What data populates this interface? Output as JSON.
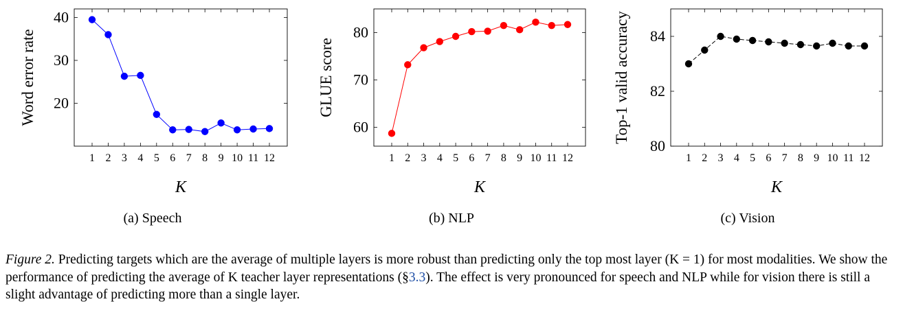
{
  "chart_data": [
    {
      "type": "line",
      "subcaption": "(a) Speech",
      "xlabel": "K",
      "ylabel": "Word error rate",
      "categories": [
        1,
        2,
        3,
        4,
        5,
        6,
        7,
        8,
        9,
        10,
        11,
        12
      ],
      "series": [
        {
          "values": [
            39.5,
            36.0,
            26.3,
            26.5,
            17.4,
            13.8,
            13.9,
            13.4,
            15.4,
            13.8,
            14.0,
            14.1
          ]
        }
      ],
      "ylim": [
        10,
        42
      ],
      "yticks": [
        20,
        30,
        40
      ],
      "color": "#0000ff",
      "grid": false
    },
    {
      "type": "line",
      "subcaption": "(b) NLP",
      "xlabel": "K",
      "ylabel": "GLUE score",
      "categories": [
        1,
        2,
        3,
        4,
        5,
        6,
        7,
        8,
        9,
        10,
        11,
        12
      ],
      "series": [
        {
          "values": [
            58.7,
            73.2,
            76.8,
            78.1,
            79.2,
            80.2,
            80.3,
            81.5,
            80.6,
            82.2,
            81.5,
            81.7
          ]
        }
      ],
      "ylim": [
        56,
        85
      ],
      "yticks": [
        60,
        70,
        80
      ],
      "color": "#ff0000",
      "grid": false
    },
    {
      "type": "line",
      "subcaption": "(c) Vision",
      "xlabel": "K",
      "ylabel": "Top-1 valid accuracy",
      "categories": [
        1,
        2,
        3,
        4,
        5,
        6,
        7,
        8,
        9,
        10,
        11,
        12
      ],
      "series": [
        {
          "values": [
            83.0,
            83.5,
            84.0,
            83.9,
            83.85,
            83.8,
            83.75,
            83.7,
            83.65,
            83.75,
            83.65,
            83.65
          ]
        }
      ],
      "ylim": [
        80,
        85
      ],
      "yticks": [
        80,
        82,
        84
      ],
      "color": "#000000",
      "line_style": "dashed",
      "grid": false
    }
  ],
  "caption": {
    "label": "Figure 2.",
    "part1": " Predicting targets which are the average of multiple layers is more robust than predicting only the top most layer (K = 1) for most modalities. We show the performance of predicting the average of K teacher layer representations (§",
    "ref": "3.3",
    "part2": "). The effect is very pronounced for speech and NLP while for vision there is still a slight advantage of predicting more than a single layer."
  }
}
